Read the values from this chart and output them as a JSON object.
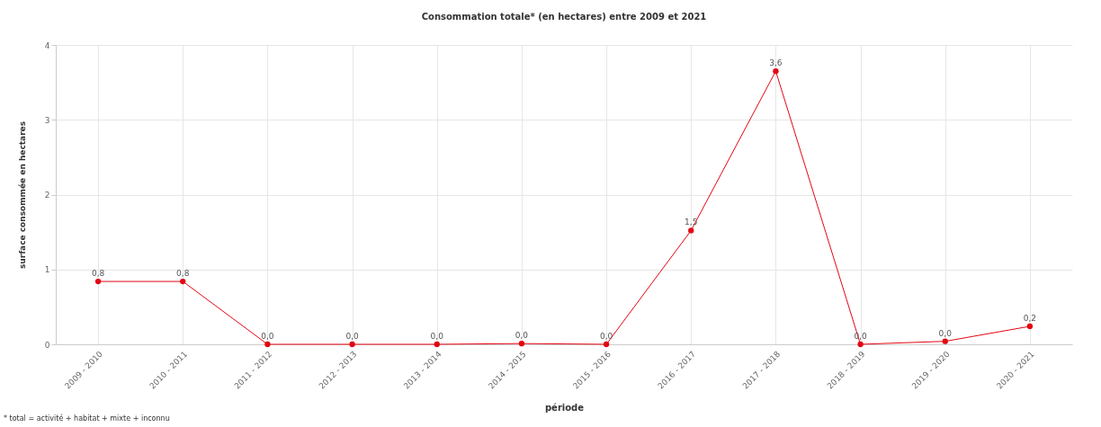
{
  "chart_data": {
    "type": "line",
    "title": "Consommation totale* (en hectares) entre 2009 et 2021",
    "xlabel": "période",
    "ylabel": "surface consommée en hectares",
    "categories": [
      "2009 - 2010",
      "2010 - 2011",
      "2011 - 2012",
      "2012 - 2013",
      "2013 - 2014",
      "2014 - 2015",
      "2015 - 2016",
      "2016 - 2017",
      "2017 - 2018",
      "2018 - 2019",
      "2019 - 2020",
      "2020 - 2021"
    ],
    "series": [
      {
        "color": "#e30613",
        "values": [
          0.84,
          0.84,
          0,
          0,
          0,
          0.01,
          0,
          1.52,
          3.65,
          0,
          0.04,
          0.24
        ],
        "value_labels": [
          "0,8",
          "0,8",
          "0,0",
          "0,0",
          "0,0",
          "0,0",
          "0,0",
          "1,5",
          "3,6",
          "0,0",
          "0,0",
          "0,2"
        ]
      }
    ],
    "ylim": [
      0,
      4
    ],
    "yticks": [
      0,
      1,
      2,
      3,
      4
    ],
    "grid": true,
    "marker": "circle",
    "line_style": "solid",
    "annotations": [
      "* total = activité + habitat + mixte + inconnu"
    ]
  }
}
